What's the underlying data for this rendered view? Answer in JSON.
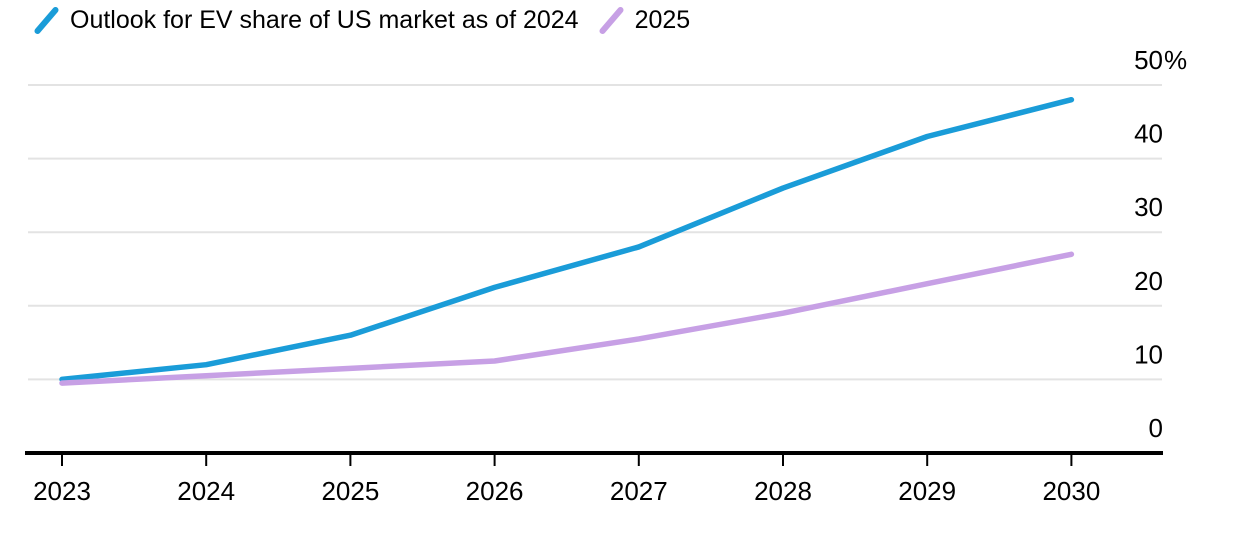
{
  "legend": {
    "series1_label": "Outlook for EV share of US market as of 2024",
    "series2_label": "2025"
  },
  "colors": {
    "series1": "#1a9cd8",
    "series2": "#c7a0e5",
    "gridline": "#e3e3e3",
    "axis": "#000000",
    "text": "#000000",
    "background": "#ffffff"
  },
  "chart_data": {
    "type": "line",
    "title": "",
    "xlabel": "",
    "ylabel": "",
    "unit": "%",
    "categories": [
      "2023",
      "2024",
      "2025",
      "2026",
      "2027",
      "2028",
      "2029",
      "2030"
    ],
    "series": [
      {
        "name": "Outlook for EV share of US market as of 2024",
        "color_key": "series1",
        "values": [
          10,
          12,
          16,
          22.5,
          28,
          36,
          43,
          48
        ]
      },
      {
        "name": "2025",
        "color_key": "series2",
        "values": [
          9.5,
          10.5,
          11.5,
          12.5,
          15.5,
          19,
          23,
          27
        ]
      }
    ],
    "ylim": [
      0,
      50
    ],
    "yticks": [
      0,
      10,
      20,
      30,
      40,
      50
    ],
    "ytick_labels": [
      "0",
      "10",
      "20",
      "30",
      "40",
      "50%"
    ],
    "grid": "horizontal",
    "legend_position": "top-left",
    "y_labels_side": "right"
  }
}
